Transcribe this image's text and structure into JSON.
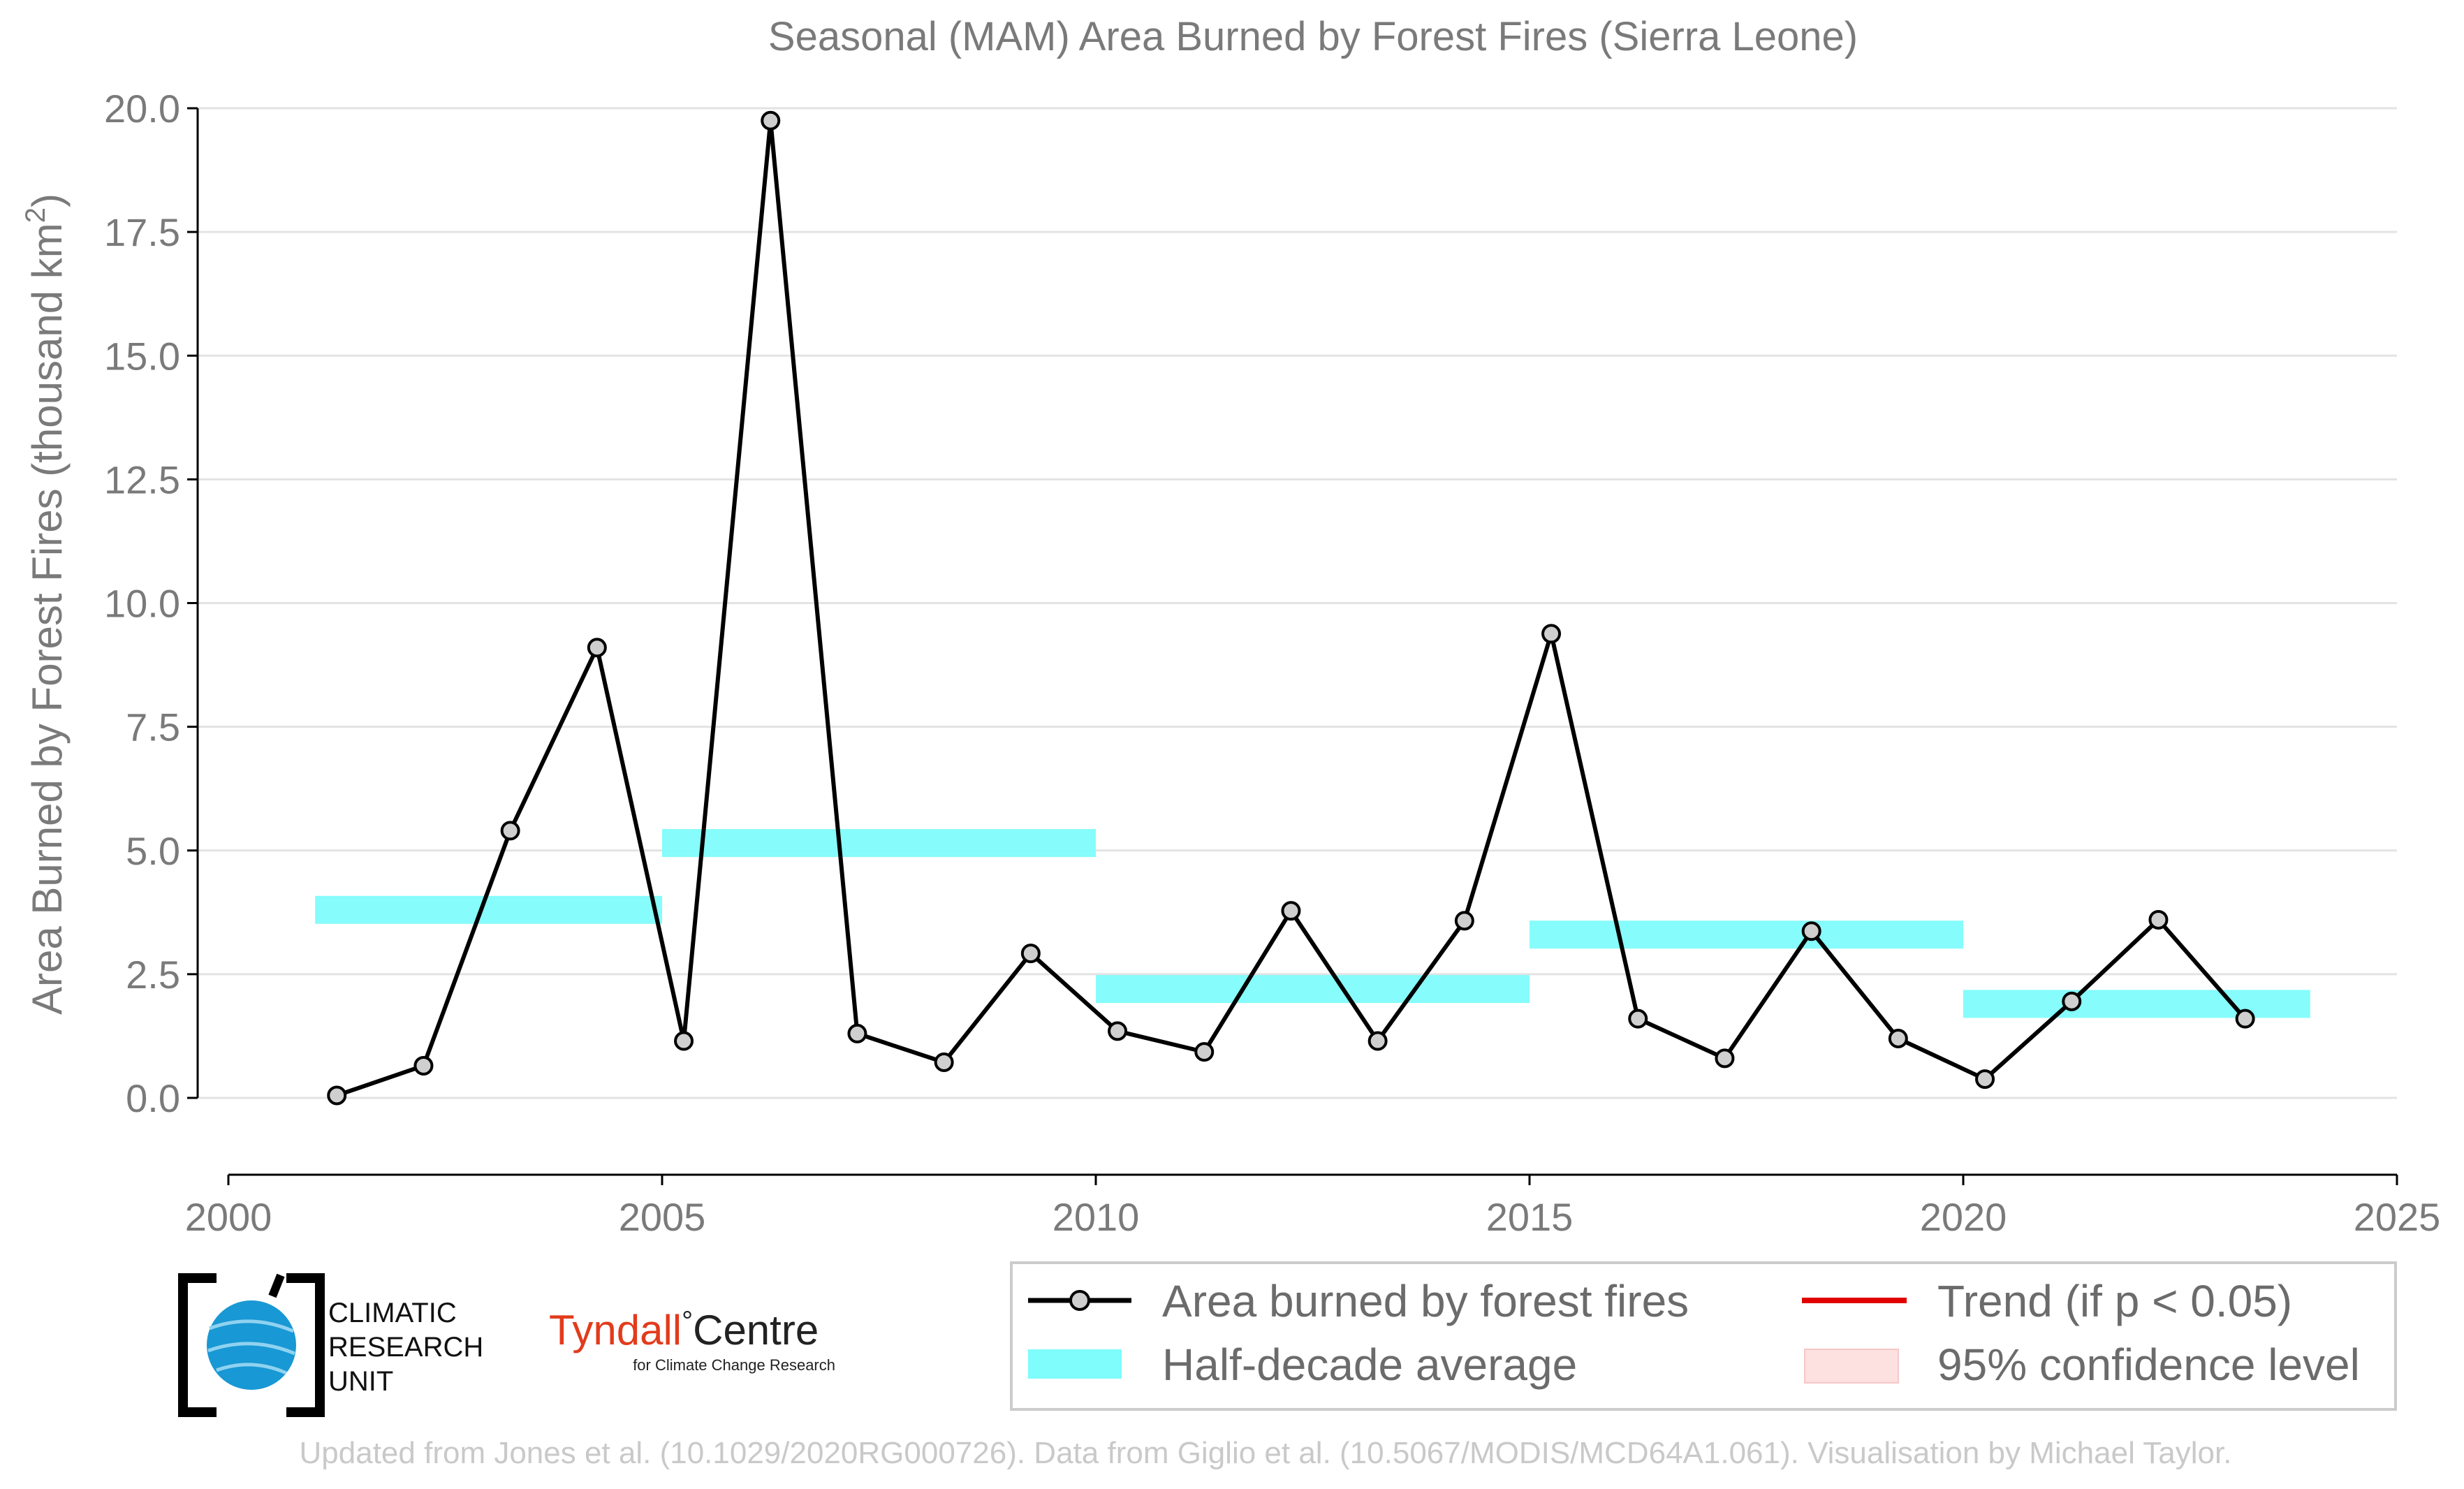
{
  "chart_data": {
    "type": "line",
    "title": "Seasonal (MAM) Area Burned by Forest Fires (Sierra Leone)",
    "xlabel": "",
    "ylabel_prefix": "Area Burned by Forest Fires (thousand km",
    "ylabel_sup": "2",
    "ylabel_suffix": ")",
    "xlim": [
      2000,
      2025
    ],
    "ylim": [
      -1.5,
      20.0
    ],
    "x_ticks": [
      2000,
      2005,
      2010,
      2015,
      2020,
      2025
    ],
    "x_tick_labels": [
      "2000",
      "2005",
      "2010",
      "2015",
      "2020",
      "2025"
    ],
    "y_ticks": [
      0,
      2.5,
      5,
      7.5,
      10,
      12.5,
      15,
      17.5,
      20
    ],
    "y_tick_labels": [
      "0.0",
      "2.5",
      "5.0",
      "7.5",
      "10.0",
      "12.5",
      "15.0",
      "17.5",
      "20.0"
    ],
    "grid": "horizontal",
    "legend_position": "bottom-right",
    "series": [
      {
        "name": "Area burned by forest fires",
        "color": "#000000",
        "x": [
          2001.25,
          2002.25,
          2003.25,
          2004.25,
          2005.25,
          2006.25,
          2007.25,
          2008.25,
          2009.25,
          2010.25,
          2011.25,
          2012.25,
          2013.25,
          2014.25,
          2015.25,
          2016.25,
          2017.25,
          2018.25,
          2019.25,
          2020.25,
          2021.25,
          2022.25,
          2023.25
        ],
        "y": [
          0.05,
          0.65,
          5.4,
          9.1,
          1.15,
          19.75,
          1.3,
          0.72,
          2.92,
          1.35,
          0.93,
          3.78,
          1.15,
          3.58,
          9.38,
          1.6,
          0.8,
          3.37,
          1.2,
          0.38,
          1.95,
          3.6,
          1.6
        ]
      }
    ],
    "half_decade_average": {
      "name": "Half-decade average",
      "color": "#7ffcfc",
      "segments": [
        {
          "x0": 2001,
          "x1": 2005,
          "y": 3.8
        },
        {
          "x0": 2005,
          "x1": 2010,
          "y": 5.15
        },
        {
          "x0": 2010,
          "x1": 2015,
          "y": 2.2
        },
        {
          "x0": 2015,
          "x1": 2020,
          "y": 3.3
        },
        {
          "x0": 2020,
          "x1": 2024,
          "y": 1.9
        }
      ]
    },
    "legend": [
      {
        "label": "Area burned by forest fires",
        "kind": "line-marker",
        "color": "#000000"
      },
      {
        "label": "Trend (if p < 0.05)",
        "kind": "line",
        "color": "#e00000"
      },
      {
        "label": "Half-decade average",
        "kind": "patch",
        "color": "#7ffcfc"
      },
      {
        "label": "95% confidence level",
        "kind": "patch",
        "color": "#fde0e0"
      }
    ]
  },
  "logos": {
    "cru_lines": [
      "CLIMATIC",
      "RESEARCH",
      "UNIT"
    ],
    "tyndall_main": "Tyndall",
    "tyndall_degree": "°",
    "tyndall_centre": "Centre",
    "tyndall_sub": "for Climate Change Research"
  },
  "footer": "Updated from Jones et al. (10.1029/2020RG000726). Data from Giglio et al. (10.5067/MODIS/MCD64A1.061). Visualisation by Michael Taylor."
}
